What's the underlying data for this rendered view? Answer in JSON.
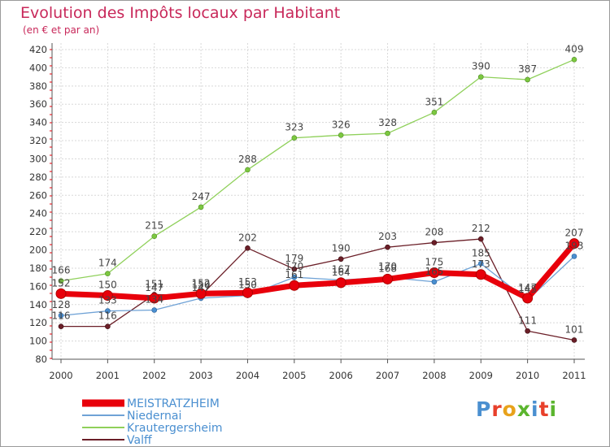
{
  "title": "Evolution des Impôts locaux par Habitant",
  "subtitle": "(en € et par an)",
  "logo_text": "Proxiti",
  "chart_data": {
    "type": "line",
    "title": "Evolution des Impôts locaux par Habitant",
    "ylabel": "(en € et par an)",
    "xlabel": "",
    "ylim": [
      80,
      420
    ],
    "yticks": [
      80,
      100,
      120,
      140,
      160,
      180,
      200,
      220,
      240,
      260,
      280,
      300,
      320,
      340,
      360,
      380,
      400,
      420
    ],
    "x": [
      "2000",
      "2001",
      "2002",
      "2003",
      "2004",
      "2005",
      "2006",
      "2007",
      "2008",
      "2009",
      "2010",
      "2011"
    ],
    "grid": true,
    "legend_position": "bottom-left",
    "series": [
      {
        "name": "MEISTRATZHEIM",
        "color": "#e8000b",
        "values": [
          152,
          150,
          147,
          152,
          153,
          161,
          164,
          168,
          175,
          173,
          147,
          207
        ]
      },
      {
        "name": "Niedernai",
        "color": "#6fa2d6",
        "values": [
          128,
          133,
          134,
          147,
          150,
          170,
          167,
          170,
          165,
          185,
          145,
          193
        ]
      },
      {
        "name": "Krautergersheim",
        "color": "#8fd05a",
        "values": [
          166,
          174,
          215,
          247,
          288,
          323,
          326,
          328,
          351,
          390,
          387,
          409
        ]
      },
      {
        "name": "Valff",
        "color": "#6b1f28",
        "values": [
          116,
          116,
          151,
          150,
          202,
          179,
          190,
          203,
          208,
          212,
          111,
          101
        ]
      }
    ],
    "labels_shown": [
      {
        "series": "MEISTRATZHEIM",
        "values": [
          "152",
          "150",
          "147",
          "152",
          "153",
          "161",
          "164",
          "168",
          "175",
          "173",
          "147",
          "207"
        ]
      },
      {
        "series": "Niedernai",
        "values": [
          "128",
          "133",
          "134",
          "147",
          "150",
          "170",
          "167",
          "170",
          "165",
          "185",
          "145",
          "193"
        ]
      },
      {
        "series": "Krautergersheim",
        "values": [
          "166",
          "174",
          "215",
          "247",
          "288",
          "323",
          "326",
          "328",
          "351",
          "390",
          "387",
          "409"
        ]
      },
      {
        "series": "Valff",
        "values": [
          "116",
          "116",
          "151",
          "150",
          "202",
          "179",
          "190",
          "203",
          "208",
          "212",
          "111",
          "101"
        ]
      }
    ]
  }
}
